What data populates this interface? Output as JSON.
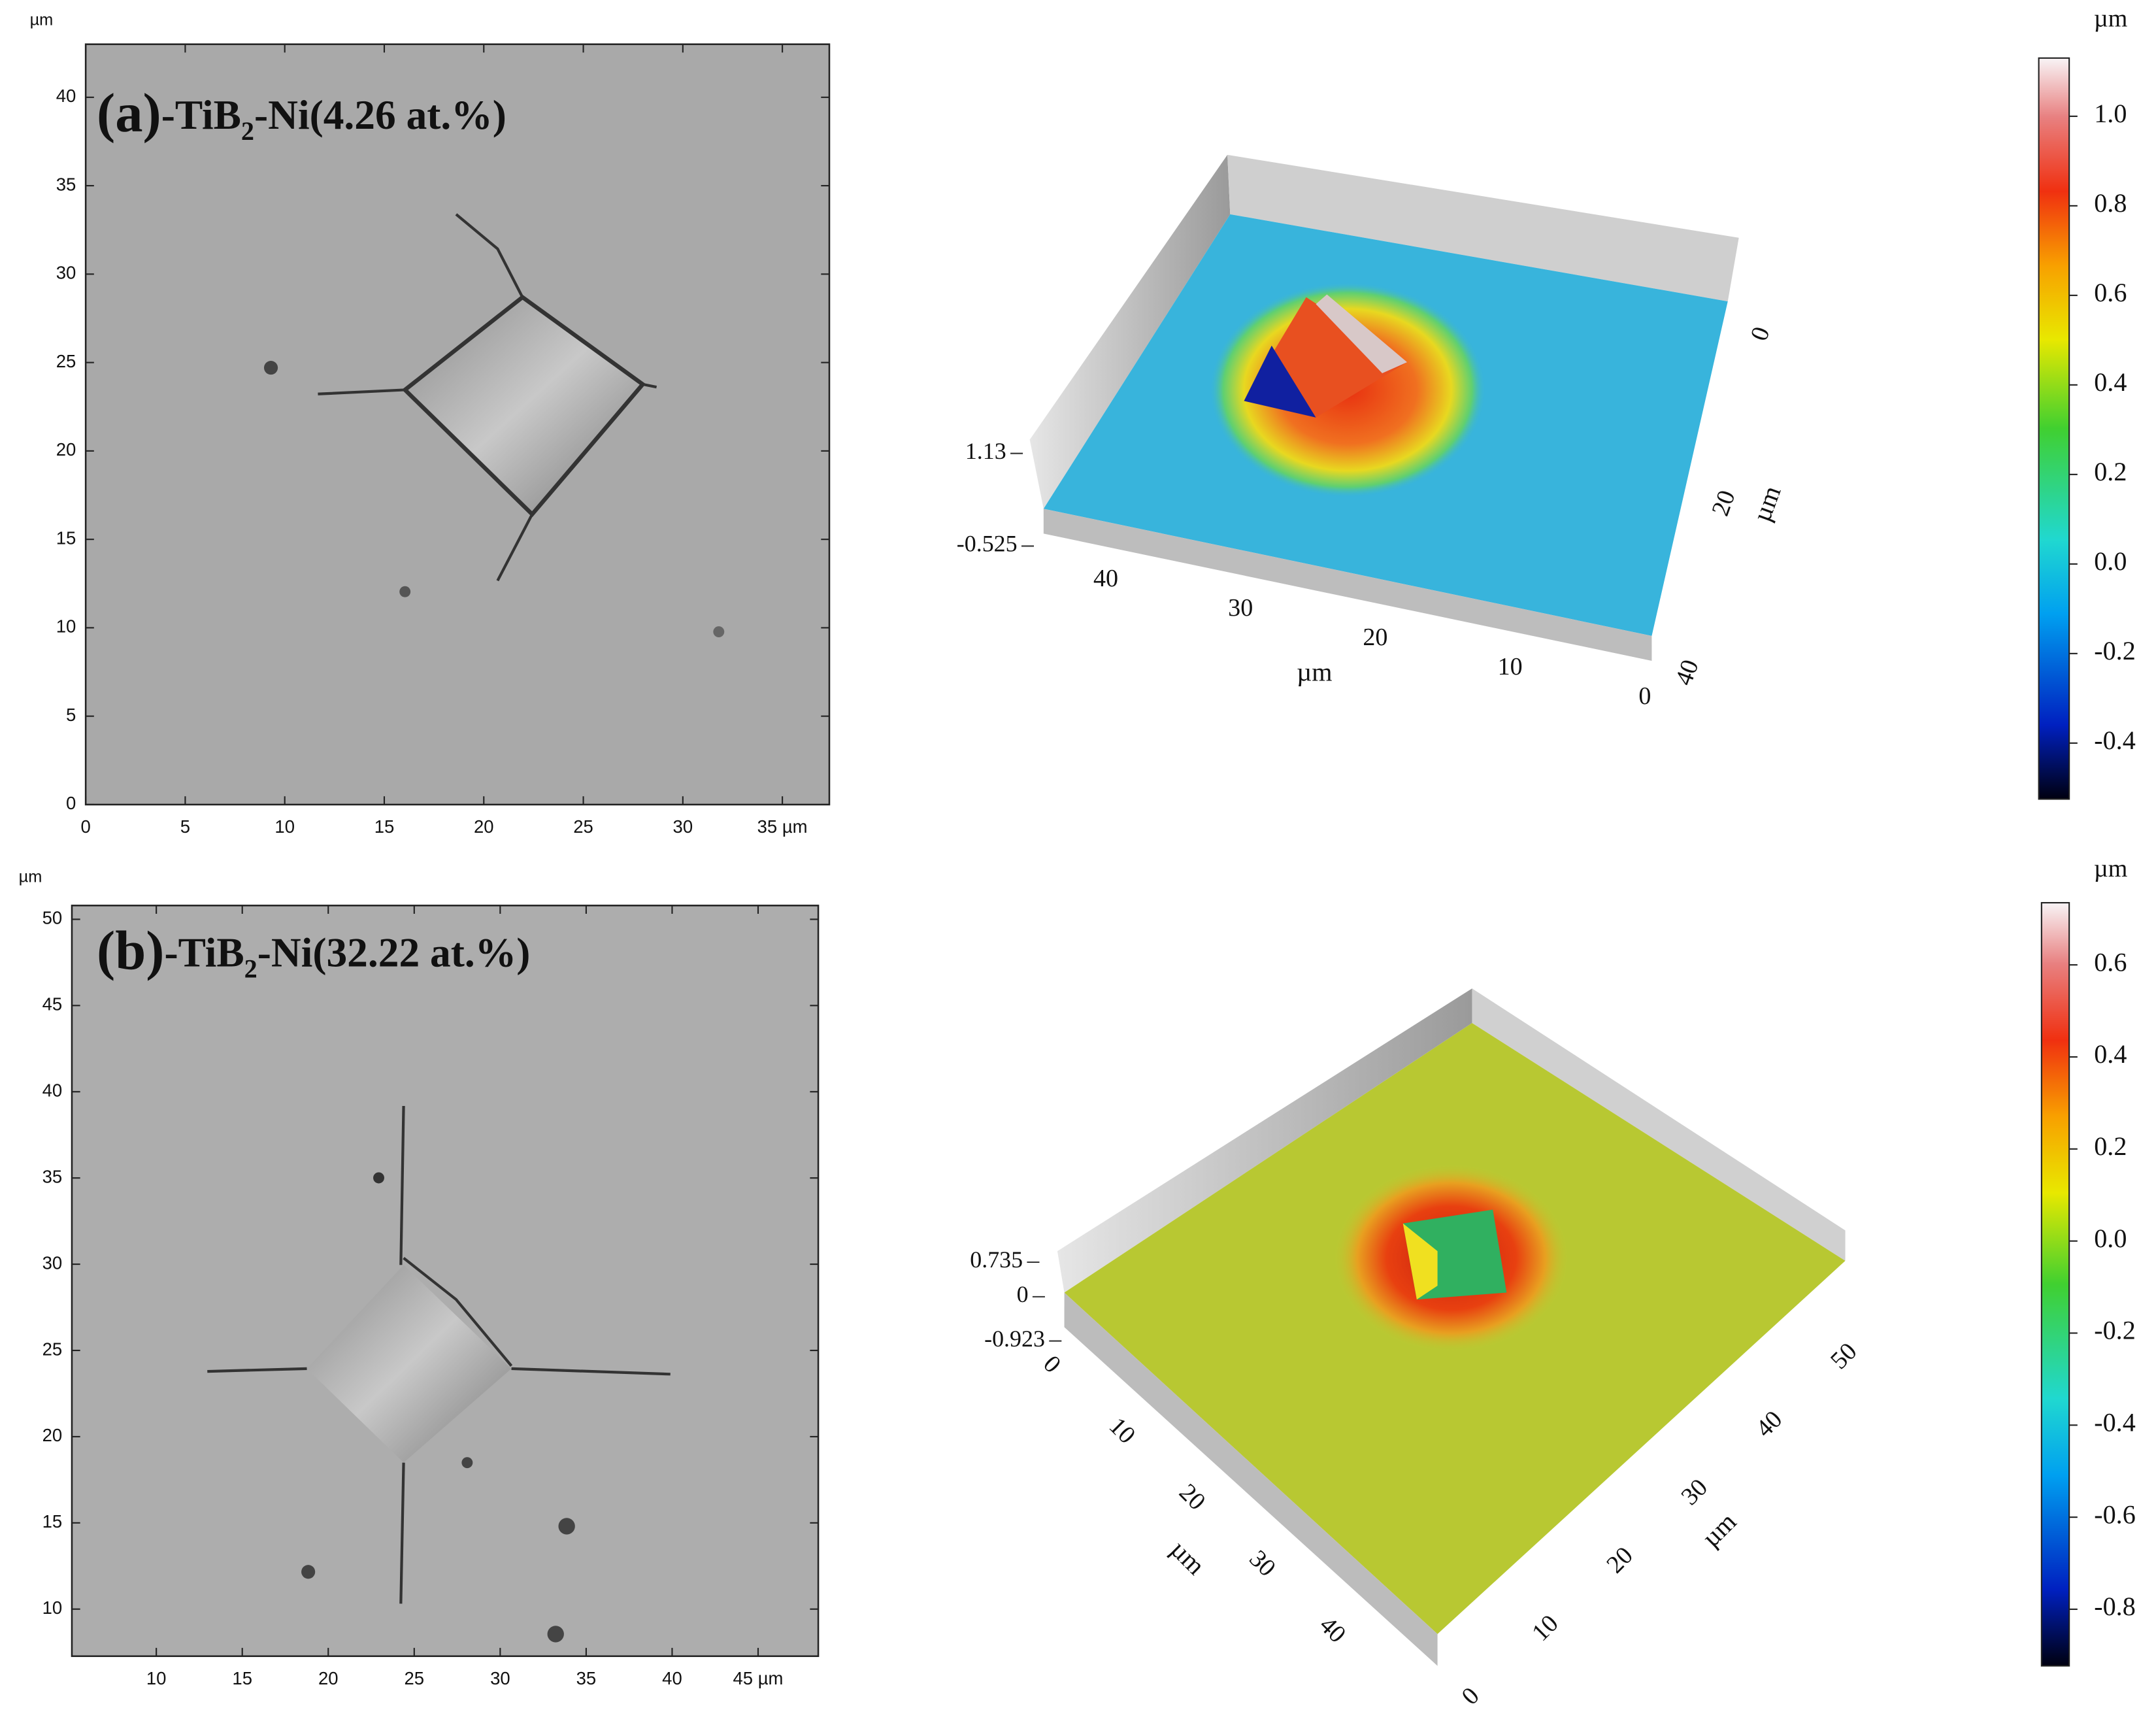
{
  "panels": [
    {
      "title": {
        "label": "(a)",
        "text": "-TiB",
        "sub": "2",
        "tail": "-Ni(4.26 at.%)"
      },
      "image": {
        "unit": "µm",
        "xlim": [
          0,
          37.36
        ],
        "ylim": [
          0,
          43.0
        ],
        "xticks": [
          0,
          5,
          10,
          15,
          20,
          25,
          30,
          {
            "value": 35,
            "label": "35 µm"
          }
        ],
        "yticks": [
          0,
          5,
          10,
          15,
          20,
          25,
          30,
          35,
          40
        ]
      },
      "surface": {
        "zticks": [
          1.13,
          -0.525
        ],
        "xticks": [
          40,
          30,
          20,
          10,
          0
        ],
        "xlabel": "µm",
        "yticks": [
          0,
          20,
          40
        ],
        "ylabel": "µm"
      },
      "colorbar": {
        "unit": "µm",
        "lim": [
          -0.525,
          1.13
        ],
        "ticks": [
          -0.4,
          -0.2,
          {
            "value": 0,
            "label": "0.0"
          },
          0.2,
          0.4,
          0.6,
          0.8,
          {
            "value": 1,
            "label": "1.0"
          }
        ]
      }
    },
    {
      "title": {
        "label": "(b)",
        "text": "-TiB",
        "sub": "2",
        "tail": "-Ni(32.22 at.%)"
      },
      "image": {
        "unit": "µm",
        "xlim": [
          5.09,
          48.5
        ],
        "ylim": [
          7.27,
          50.8
        ],
        "xticks": [
          10,
          15,
          20,
          25,
          30,
          35,
          40,
          {
            "value": 45,
            "label": "45 µm"
          }
        ],
        "yticks": [
          10,
          15,
          20,
          25,
          30,
          35,
          40,
          45,
          50
        ]
      },
      "surface": {
        "zticks": [
          0.735,
          0,
          -0.923
        ],
        "xticks": [
          0,
          10,
          20,
          30,
          40
        ],
        "xlabel": "µm",
        "yticks": [
          0,
          10,
          20,
          30,
          40,
          50
        ],
        "ylabel": "µm"
      },
      "colorbar": {
        "unit": "µm",
        "lim": [
          -0.923,
          0.735
        ],
        "ticks": [
          -0.8,
          -0.6,
          -0.4,
          -0.2,
          {
            "value": 0,
            "label": "0.0"
          },
          0.2,
          0.4,
          0.6
        ]
      }
    }
  ]
}
